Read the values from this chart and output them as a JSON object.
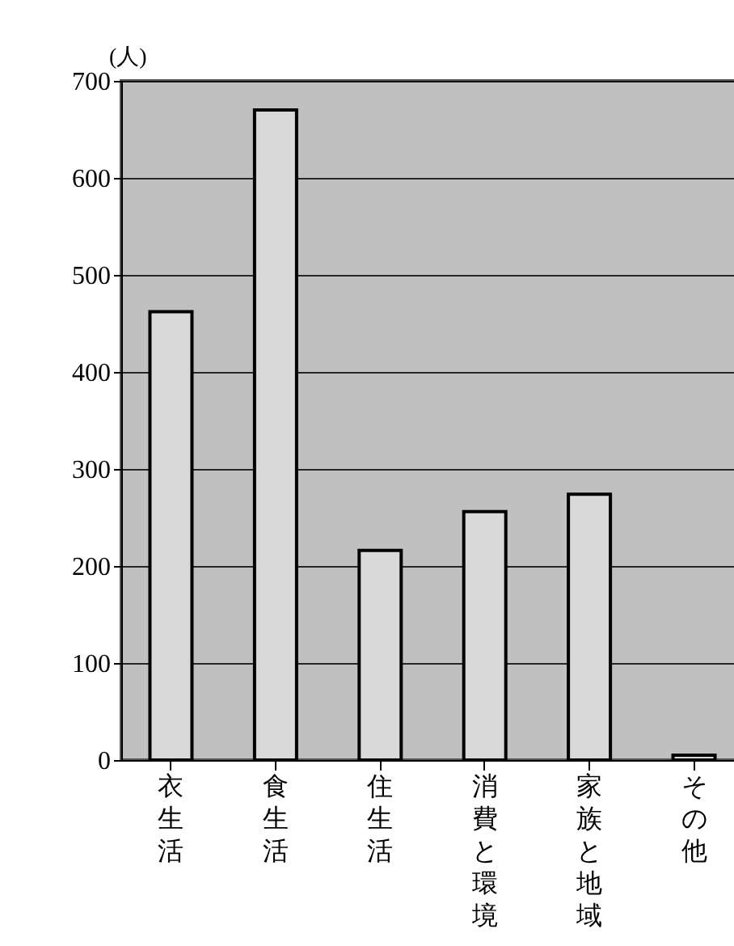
{
  "chart_data": {
    "type": "bar",
    "ylabel": "(人)",
    "categories": [
      "衣生活",
      "食生活",
      "住生活",
      "消費と環境",
      "家族と地域",
      "その他"
    ],
    "values": [
      462,
      670,
      216,
      256,
      274,
      5
    ],
    "color": "#d9d9d9",
    "ylim": [
      0,
      700
    ],
    "yticks": [
      0,
      100,
      200,
      300,
      400,
      500,
      600,
      700
    ],
    "grid": "y"
  }
}
